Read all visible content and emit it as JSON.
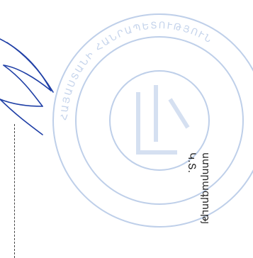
{
  "document": {
    "signature_label": "ստորագրությ",
    "initials": "Կ.Տ.",
    "seal_text": "ՀԱՅԱՍՏԱՆԻ ՀԱՆՐԱՊԵՏՈՒԹՅՈՒՆ",
    "seal_color": "#8aa8d8",
    "signature_color": "#1f3fa6"
  }
}
